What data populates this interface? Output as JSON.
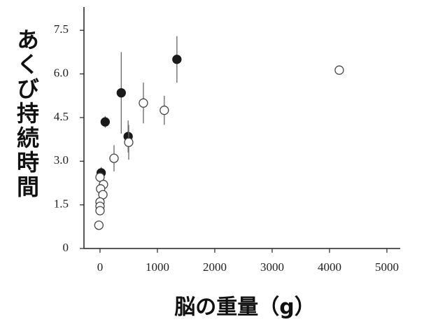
{
  "chart_data": {
    "type": "scatter",
    "x_label": "脳の重量（g）",
    "y_label": "あくび持続時間",
    "xlim": [
      -280,
      5232
    ],
    "ylim": [
      0,
      8.3
    ],
    "xticks": [
      0,
      1000,
      2000,
      3000,
      4000,
      5000
    ],
    "yticks": [
      0,
      1.5,
      {
        "value": 3,
        "label": "3.0"
      },
      4.5,
      {
        "value": 6,
        "label": "6.0"
      },
      7.5
    ],
    "grid": false,
    "series": [
      {
        "marker": "filled",
        "color": "#1a1a1a",
        "x": [
          20,
          90,
          370,
          490,
          1340
        ],
        "y": [
          2.6,
          4.35,
          5.35,
          3.85,
          6.5
        ],
        "errors": [
          0.2,
          0.2,
          1.4,
          0.55,
          0.8
        ]
      },
      {
        "marker": "open",
        "color": "#444444",
        "x": [
          4170,
          1120,
          756,
          500,
          244,
          0,
          60,
          10,
          50,
          0,
          0,
          0,
          -20
        ],
        "y": [
          6.13,
          4.75,
          5.0,
          3.65,
          3.1,
          2.45,
          2.2,
          2.05,
          1.85,
          1.6,
          1.45,
          1.3,
          0.8
        ],
        "errors": [
          null,
          0.5,
          0.7,
          0.6,
          0.45,
          null,
          null,
          null,
          null,
          null,
          null,
          null,
          null
        ]
      }
    ]
  }
}
